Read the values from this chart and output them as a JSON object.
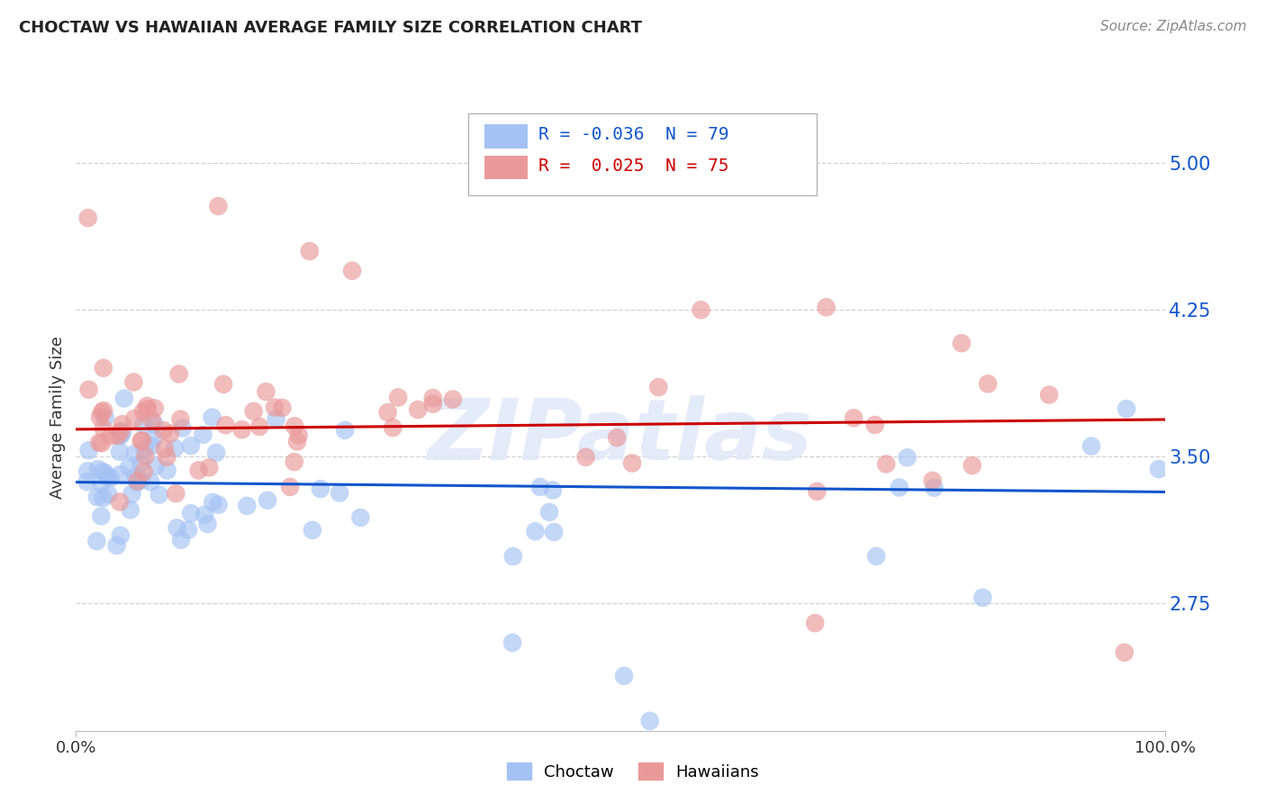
{
  "title": "CHOCTAW VS HAWAIIAN AVERAGE FAMILY SIZE CORRELATION CHART",
  "source": "Source: ZipAtlas.com",
  "ylabel": "Average Family Size",
  "yticks": [
    2.75,
    3.5,
    4.25,
    5.0
  ],
  "xlim": [
    0.0,
    1.0
  ],
  "ylim": [
    2.1,
    5.3
  ],
  "choctaw_R": -0.036,
  "choctaw_N": 79,
  "hawaiian_R": 0.025,
  "hawaiian_N": 75,
  "choctaw_color": "#a4c2f4",
  "hawaiian_color": "#ea9999",
  "choctaw_line_color": "#1155cc",
  "hawaiian_line_color": "#cc0000",
  "background_color": "#ffffff",
  "grid_color": "#cccccc",
  "title_color": "#222222",
  "source_color": "#888888",
  "legend_label_blue": "Choctaw",
  "legend_label_pink": "Hawaiians",
  "choctaw_intercept": 3.37,
  "choctaw_slope": -0.05,
  "hawaiian_intercept": 3.64,
  "hawaiian_slope": 0.05
}
